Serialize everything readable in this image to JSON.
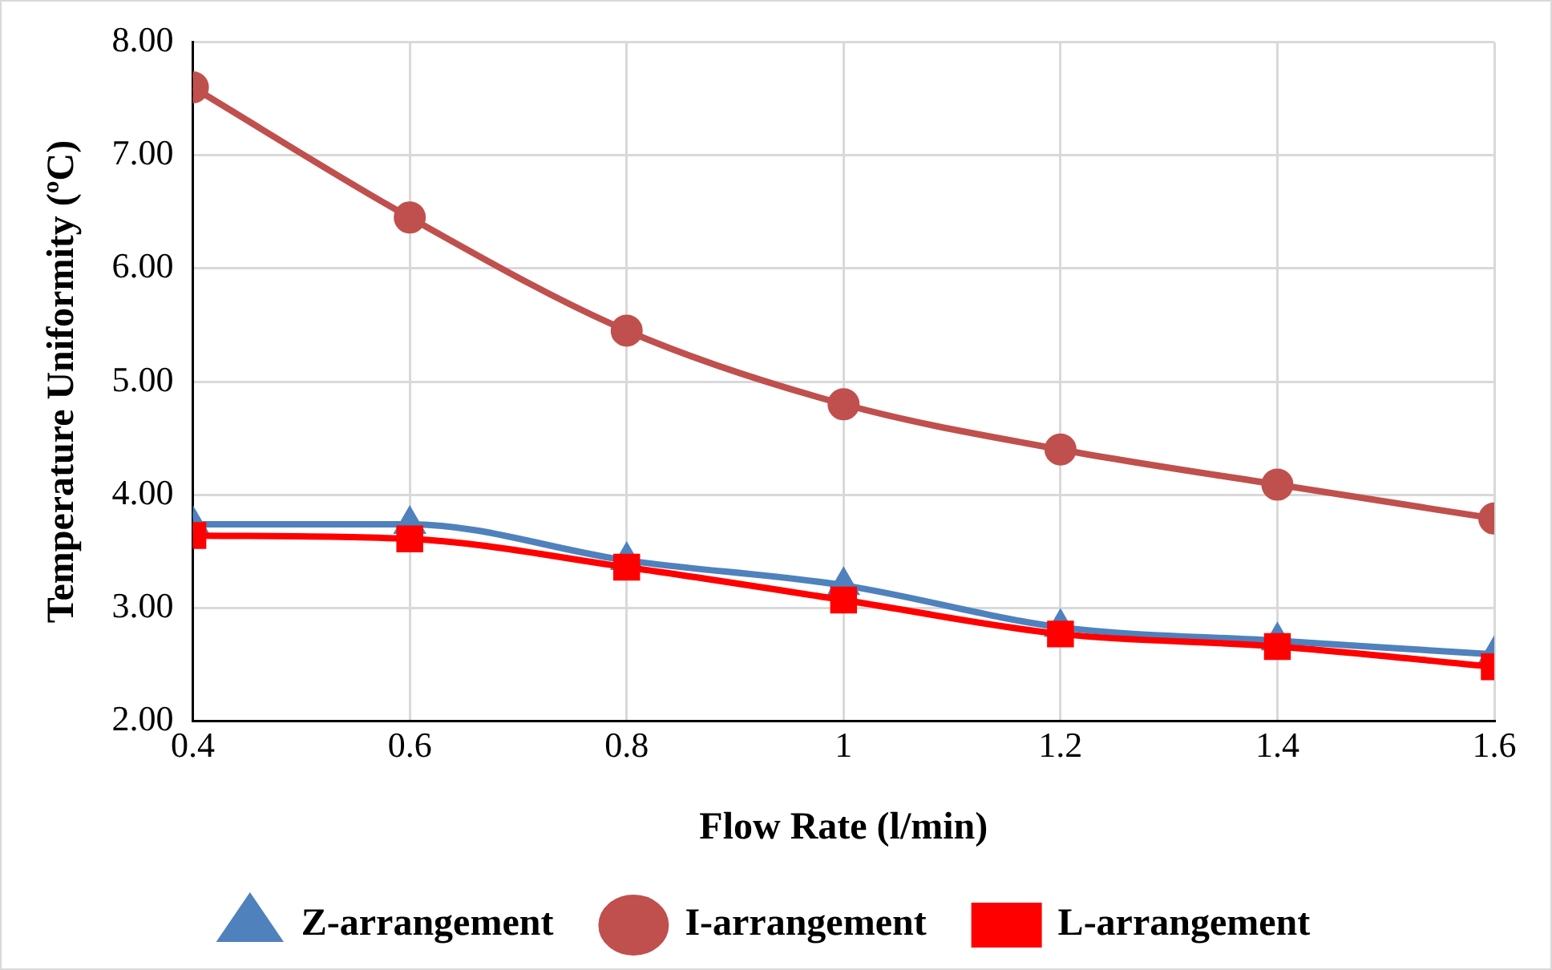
{
  "chart_data": {
    "type": "line",
    "xlabel": "Flow Rate (l/min)",
    "ylabel": "Temperature Uniformity (ºC)",
    "x": [
      0.4,
      0.6,
      0.8,
      1,
      1.2,
      1.4,
      1.6
    ],
    "series": [
      {
        "name": "Z-arrangement",
        "color": "#4f81bd",
        "marker": "triangle",
        "values": [
          3.74,
          3.74,
          3.42,
          3.2,
          2.83,
          2.71,
          2.59
        ]
      },
      {
        "name": "I-arrangement",
        "color": "#c0504d",
        "marker": "circle",
        "values": [
          7.6,
          6.45,
          5.45,
          4.8,
          4.4,
          4.09,
          3.79
        ]
      },
      {
        "name": "L-arrangement",
        "color": "#ff0000",
        "marker": "square",
        "values": [
          3.64,
          3.61,
          3.36,
          3.07,
          2.77,
          2.66,
          2.48
        ]
      }
    ],
    "xlim": [
      0.4,
      1.6
    ],
    "xticks": [
      0.4,
      0.6,
      0.8,
      1,
      1.2,
      1.4,
      1.6
    ],
    "ylim": [
      2,
      8
    ],
    "yticks": [
      {
        "value": 2,
        "label": "2.00"
      },
      {
        "value": 3,
        "label": "3.00"
      },
      {
        "value": 4,
        "label": "4.00"
      },
      {
        "value": 5,
        "label": "5.00"
      },
      {
        "value": 6,
        "label": "6.00"
      },
      {
        "value": 7,
        "label": "7.00"
      },
      {
        "value": 8,
        "label": "8.00"
      }
    ],
    "grid": true,
    "legend": "bottom",
    "line_style": "solid"
  }
}
